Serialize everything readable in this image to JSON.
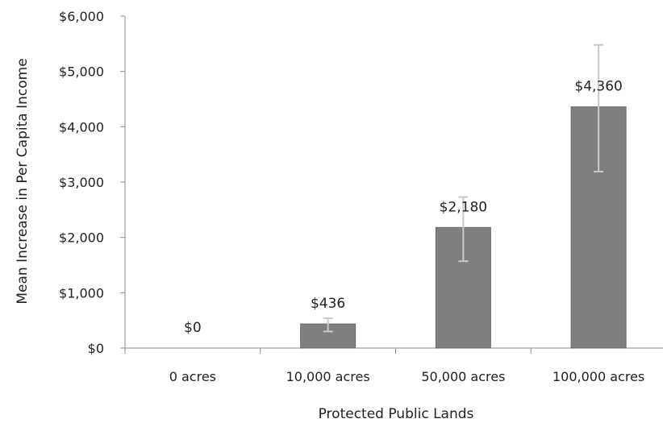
{
  "chart_data": {
    "type": "bar",
    "title": "",
    "xlabel": "Protected Public Lands",
    "ylabel": "Mean Increase in Per Capita Income",
    "categories": [
      "0 acres",
      "10,000 acres",
      "50,000 acres",
      "100,000 acres"
    ],
    "values": [
      0,
      436,
      2180,
      4360
    ],
    "data_labels": [
      "$0",
      "$436",
      "$2,180",
      "$4,360"
    ],
    "error_bars": {
      "low": [
        0,
        300,
        1570,
        3190
      ],
      "high": [
        0,
        540,
        2730,
        5480
      ]
    },
    "ylim": [
      0,
      6000
    ],
    "yticks": [
      0,
      1000,
      2000,
      3000,
      4000,
      5000,
      6000
    ],
    "ytick_labels": [
      "$0",
      "$1,000",
      "$2,000",
      "$3,000",
      "$4,000",
      "$5,000",
      "$6,000"
    ],
    "grid": false,
    "legend": "none",
    "colors": {
      "bar": "#7f7f7f",
      "bar_edge": "#6a6a6a",
      "axis": "#8c8c8c",
      "error_bar": "#c9c9c9",
      "text": "#222222"
    }
  }
}
